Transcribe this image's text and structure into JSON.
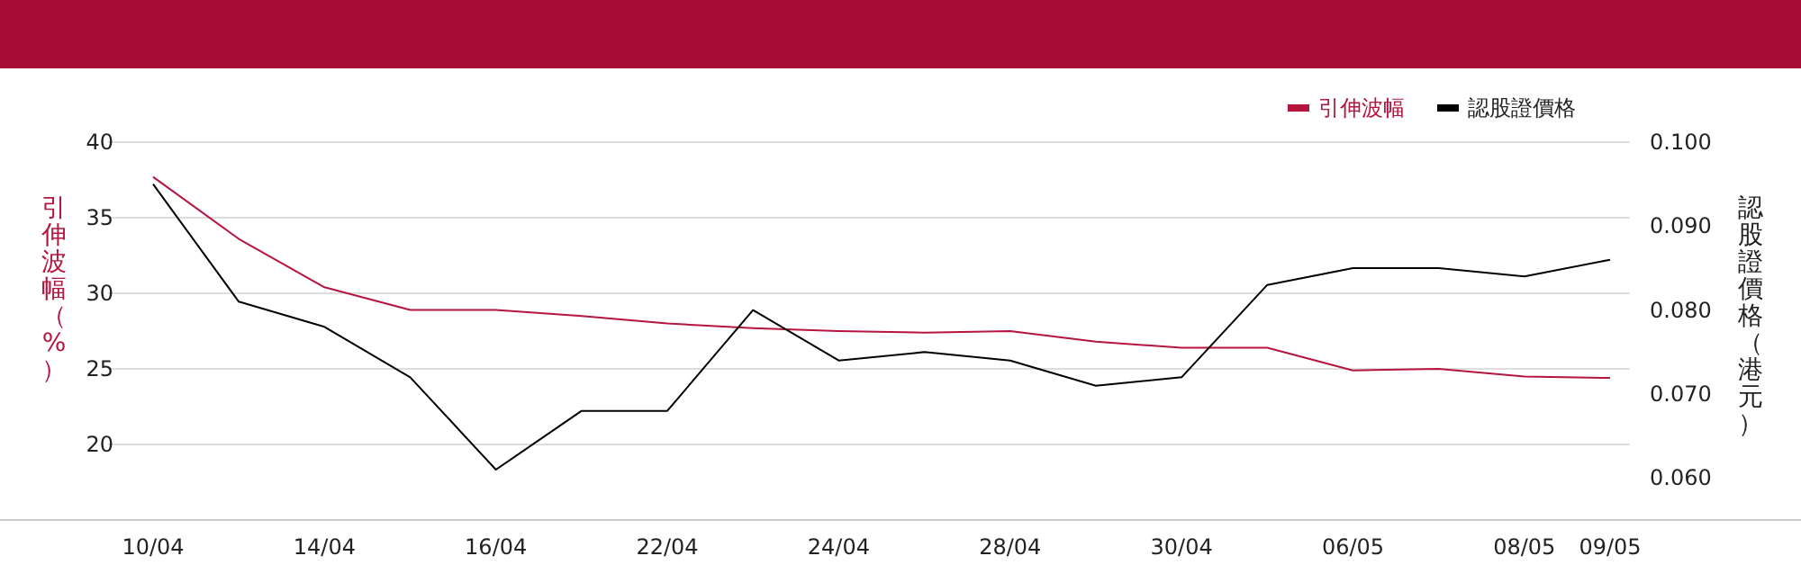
{
  "chart_data": {
    "type": "line",
    "categories": [
      "10/04",
      null,
      "14/04",
      null,
      "16/04",
      null,
      "22/04",
      null,
      "24/04",
      null,
      "28/04",
      null,
      "30/04",
      null,
      "06/05",
      null,
      "08/05",
      "09/05"
    ],
    "series": [
      {
        "name": "引伸波幅",
        "color": "#b5153f",
        "values": [
          37.7,
          33.6,
          30.4,
          28.9,
          28.9,
          28.5,
          28.0,
          27.7,
          27.5,
          27.4,
          27.5,
          26.8,
          26.4,
          26.4,
          24.9,
          25.0,
          24.5,
          24.4
        ]
      },
      {
        "name": "認股證價格",
        "color": "#000000",
        "axis": "y2",
        "values": [
          0.095,
          0.081,
          0.078,
          0.072,
          0.061,
          0.068,
          0.068,
          0.08,
          0.074,
          0.075,
          0.074,
          0.071,
          0.072,
          0.083,
          0.085,
          0.085,
          0.084,
          0.086
        ]
      }
    ],
    "ylabel": "引伸波幅（%）",
    "y2label": "認股證價格（港元）",
    "ylim": [
      15,
      40
    ],
    "yticks": [
      20,
      25,
      30,
      35,
      40
    ],
    "y2lim": [
      0.055,
      0.1
    ],
    "y2ticks": [
      {
        "value": 0.06,
        "label": "0.060"
      },
      {
        "value": 0.07,
        "label": "0.070"
      },
      {
        "value": 0.08,
        "label": "0.080"
      },
      {
        "value": 0.09,
        "label": "0.090"
      },
      {
        "value": 0.1,
        "label": "0.100"
      }
    ],
    "grid": "y",
    "legend": "top right",
    "marker": "none",
    "line_style": "solid"
  }
}
